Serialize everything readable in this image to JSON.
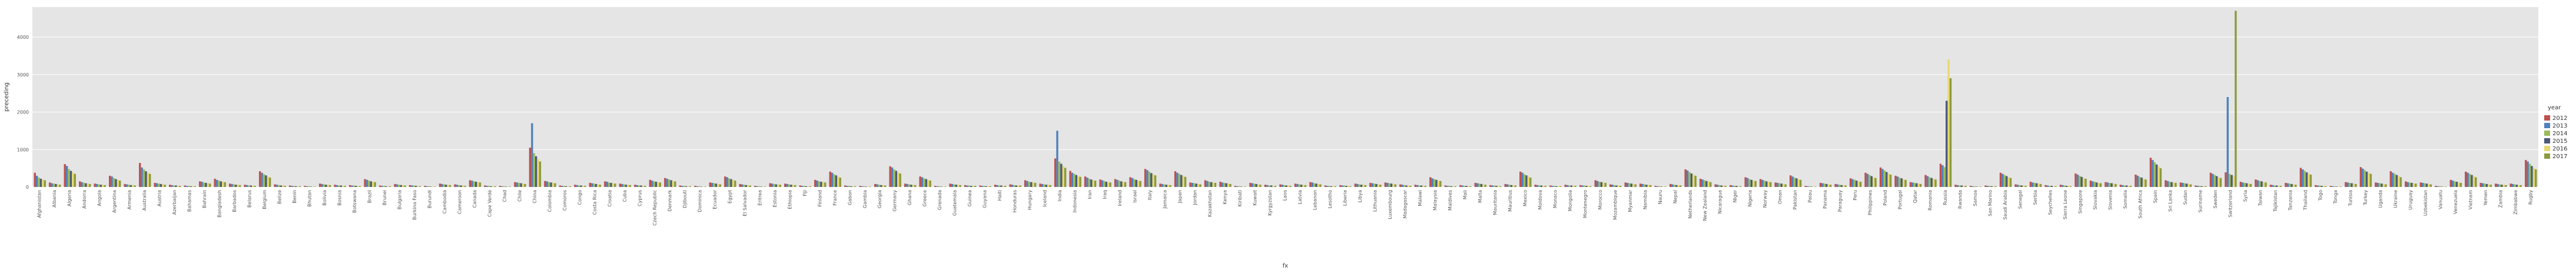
{
  "chart_data": {
    "type": "bar",
    "title": "",
    "xlabel": "fx",
    "ylabel": "preceding",
    "ylim": [
      0,
      4800
    ],
    "yticks": [
      0,
      1000,
      2000,
      3000,
      4000
    ],
    "grid": true,
    "legend_title": "year",
    "legend_position": "right",
    "categories": [
      "Afghanistan",
      "Albania",
      "Algeria",
      "Andorra",
      "Angola",
      "Argentina",
      "Armenia",
      "Australia",
      "Austria",
      "Azerbaijan",
      "Bahamas",
      "Bahrain",
      "Bangladesh",
      "Barbados",
      "Belarus",
      "Belgium",
      "Belize",
      "Benin",
      "Bhutan",
      "Bolivia",
      "Bosnia",
      "Botswana",
      "Brazil",
      "Brunei",
      "Bulgaria",
      "Burkina Faso",
      "Burundi",
      "Cambodia",
      "Cameroon",
      "Canada",
      "Cape Verde",
      "Chad",
      "Chile",
      "China",
      "Colombia",
      "Comoros",
      "Congo",
      "Costa Rica",
      "Croatia",
      "Cuba",
      "Cyprus",
      "Czech Republic",
      "Denmark",
      "Djibouti",
      "Dominica",
      "Ecuador",
      "Egypt",
      "El Salvador",
      "Eritrea",
      "Estonia",
      "Ethiopia",
      "Fiji",
      "Finland",
      "France",
      "Gabon",
      "Gambia",
      "Georgia",
      "Germany",
      "Ghana",
      "Greece",
      "Grenada",
      "Guatemala",
      "Guinea",
      "Guyana",
      "Haiti",
      "Honduras",
      "Hungary",
      "Iceland",
      "India",
      "Indonesia",
      "Iran",
      "Iraq",
      "Ireland",
      "Israel",
      "Italy",
      "Jamaica",
      "Japan",
      "Jordan",
      "Kazakhstan",
      "Kenya",
      "Kiribati",
      "Kuwait",
      "Kyrgyzstan",
      "Laos",
      "Latvia",
      "Lebanon",
      "Lesotho",
      "Liberia",
      "Libya",
      "Lithuania",
      "Luxembourg",
      "Madagascar",
      "Malawi",
      "Malaysia",
      "Maldives",
      "Mali",
      "Malta",
      "Mauritania",
      "Mauritius",
      "Mexico",
      "Moldova",
      "Monaco",
      "Mongolia",
      "Montenegro",
      "Morocco",
      "Mozambique",
      "Myanmar",
      "Namibia",
      "Nauru",
      "Nepal",
      "Netherlands",
      "New Zealand",
      "Nicaragua",
      "Niger",
      "Nigeria",
      "Norway",
      "Oman",
      "Pakistan",
      "Palau",
      "Panama",
      "Paraguay",
      "Peru",
      "Philippines",
      "Poland",
      "Portugal",
      "Qatar",
      "Romania",
      "Russia",
      "Rwanda",
      "Samoa",
      "San Marino",
      "Saudi Arabia",
      "Senegal",
      "Serbia",
      "Seychelles",
      "Sierra Leone",
      "Singapore",
      "Slovakia",
      "Slovenia",
      "Somalia",
      "South Africa",
      "Spain",
      "Sri Lanka",
      "Sudan",
      "Suriname",
      "Sweden",
      "Switzerland",
      "Syria",
      "Taiwan",
      "Tajikistan",
      "Tanzania",
      "Thailand",
      "Togo",
      "Tonga",
      "Tunisia",
      "Turkey",
      "Uganda",
      "Ukraine",
      "Uruguay",
      "Uzbekistan",
      "Vanuatu",
      "Venezuela",
      "Vietnam",
      "Yemen",
      "Zambia",
      "Zimbabwe",
      "Rugby"
    ],
    "series": [
      {
        "name": "2012",
        "color": "#c0504d",
        "values": [
          380,
          120,
          610,
          150,
          90,
          300,
          80,
          640,
          110,
          60,
          40,
          150,
          220,
          90,
          60,
          420,
          70,
          40,
          30,
          90,
          60,
          50,
          210,
          40,
          80,
          50,
          30,
          90,
          70,
          180,
          40,
          30,
          130,
          1050,
          160,
          40,
          60,
          110,
          150,
          90,
          60,
          190,
          240,
          40,
          30,
          120,
          280,
          80,
          30,
          100,
          90,
          40,
          190,
          410,
          40,
          30,
          80,
          550,
          90,
          280,
          30,
          90,
          50,
          40,
          60,
          70,
          180,
          90,
          760,
          430,
          280,
          200,
          210,
          260,
          480,
          90,
          420,
          120,
          180,
          140,
          30,
          110,
          60,
          70,
          90,
          130,
          40,
          50,
          90,
          110,
          120,
          70,
          60,
          260,
          40,
          50,
          110,
          50,
          80,
          410,
          60,
          40,
          60,
          50,
          180,
          70,
          120,
          90,
          30,
          80,
          470,
          220,
          70,
          50,
          260,
          210,
          120,
          310,
          30,
          110,
          80,
          230,
          380,
          520,
          300,
          130,
          320,
          620,
          60,
          30,
          40,
          380,
          70,
          140,
          50,
          60,
          360,
          170,
          130,
          60,
          330,
          780,
          180,
          120,
          40,
          380,
          390,
          140,
          200,
          60,
          110,
          510,
          50,
          30,
          130,
          530,
          120,
          420,
          150,
          120,
          30,
          190,
          410,
          110,
          90,
          90,
          720
        ]
      },
      {
        "name": "2013",
        "color": "#4f81bd",
        "values": [
          300,
          100,
          560,
          130,
          80,
          280,
          70,
          520,
          100,
          50,
          30,
          140,
          190,
          80,
          50,
          380,
          60,
          30,
          20,
          80,
          50,
          40,
          190,
          30,
          70,
          40,
          20,
          80,
          60,
          170,
          30,
          20,
          120,
          1700,
          150,
          30,
          50,
          100,
          140,
          80,
          50,
          170,
          220,
          30,
          20,
          110,
          260,
          70,
          20,
          90,
          80,
          30,
          170,
          380,
          30,
          20,
          70,
          520,
          80,
          260,
          20,
          80,
          40,
          30,
          50,
          60,
          160,
          80,
          1500,
          380,
          250,
          180,
          190,
          240,
          450,
          80,
          380,
          110,
          160,
          120,
          20,
          100,
          50,
          60,
          80,
          120,
          30,
          40,
          80,
          100,
          110,
          60,
          50,
          230,
          30,
          40,
          100,
          40,
          70,
          380,
          50,
          30,
          50,
          40,
          160,
          60,
          110,
          80,
          20,
          70,
          440,
          200,
          60,
          40,
          240,
          190,
          110,
          280,
          20,
          100,
          70,
          210,
          350,
          480,
          280,
          120,
          290,
          580,
          50,
          20,
          30,
          350,
          60,
          120,
          40,
          50,
          330,
          150,
          120,
          50,
          300,
          720,
          160,
          110,
          30,
          350,
          2400,
          120,
          180,
          50,
          100,
          470,
          40,
          20,
          120,
          490,
          110,
          380,
          130,
          110,
          20,
          170,
          380,
          100,
          80,
          80,
          680
        ]
      },
      {
        "name": "2014",
        "color": "#9bbb59",
        "values": [
          250,
          90,
          480,
          110,
          70,
          240,
          60,
          470,
          90,
          40,
          30,
          120,
          170,
          70,
          40,
          340,
          50,
          30,
          20,
          70,
          40,
          40,
          170,
          30,
          60,
          40,
          20,
          70,
          50,
          150,
          30,
          20,
          110,
          900,
          130,
          30,
          40,
          90,
          120,
          70,
          40,
          150,
          200,
          30,
          20,
          100,
          230,
          60,
          20,
          80,
          70,
          30,
          150,
          340,
          30,
          20,
          60,
          470,
          70,
          230,
          20,
          70,
          40,
          30,
          40,
          50,
          140,
          70,
          680,
          350,
          220,
          160,
          170,
          210,
          410,
          70,
          350,
          100,
          140,
          110,
          20,
          90,
          40,
          50,
          70,
          100,
          30,
          40,
          70,
          90,
          100,
          50,
          40,
          210,
          30,
          30,
          90,
          40,
          60,
          340,
          40,
          30,
          40,
          40,
          140,
          50,
          100,
          70,
          20,
          60,
          400,
          180,
          50,
          30,
          210,
          170,
          100,
          250,
          20,
          90,
          60,
          190,
          320,
          440,
          250,
          110,
          260,
          530,
          40,
          20,
          30,
          320,
          50,
          110,
          30,
          40,
          300,
          140,
          110,
          40,
          270,
          660,
          140,
          100,
          30,
          320,
          350,
          110,
          160,
          40,
          90,
          430,
          40,
          20,
          110,
          450,
          100,
          350,
          120,
          100,
          20,
          150,
          350,
          90,
          70,
          70,
          620
        ]
      },
      {
        "name": "2015",
        "color": "#4a5a7a",
        "values": [
          220,
          80,
          430,
          100,
          60,
          210,
          50,
          420,
          80,
          40,
          20,
          110,
          150,
          60,
          40,
          310,
          40,
          20,
          10,
          60,
          40,
          30,
          150,
          20,
          50,
          30,
          10,
          60,
          40,
          140,
          20,
          10,
          100,
          820,
          120,
          20,
          40,
          80,
          110,
          60,
          40,
          140,
          180,
          20,
          10,
          90,
          210,
          50,
          10,
          70,
          60,
          20,
          140,
          310,
          20,
          10,
          50,
          430,
          60,
          210,
          10,
          60,
          30,
          20,
          40,
          40,
          130,
          60,
          620,
          320,
          200,
          140,
          150,
          190,
          370,
          60,
          320,
          90,
          130,
          100,
          10,
          80,
          40,
          40,
          60,
          90,
          20,
          30,
          60,
          80,
          90,
          40,
          40,
          190,
          20,
          30,
          80,
          30,
          50,
          310,
          40,
          20,
          40,
          30,
          130,
          40,
          90,
          60,
          10,
          50,
          360,
          160,
          40,
          30,
          190,
          150,
          90,
          230,
          10,
          80,
          50,
          170,
          290,
          400,
          230,
          100,
          240,
          2300,
          40,
          10,
          20,
          290,
          40,
          100,
          30,
          30,
          270,
          120,
          100,
          40,
          250,
          600,
          130,
          90,
          20,
          290,
          320,
          100,
          150,
          40,
          80,
          390,
          30,
          10,
          100,
          410,
          90,
          320,
          110,
          90,
          10,
          140,
          320,
          80,
          60,
          60,
          560
        ]
      },
      {
        "name": "2016",
        "color": "#e8d870",
        "values": [
          200,
          70,
          390,
          90,
          60,
          190,
          50,
          380,
          70,
          30,
          20,
          100,
          140,
          60,
          30,
          280,
          40,
          20,
          10,
          60,
          30,
          30,
          140,
          20,
          50,
          30,
          10,
          60,
          40,
          130,
          20,
          10,
          90,
          740,
          110,
          20,
          30,
          70,
          100,
          60,
          30,
          130,
          160,
          20,
          10,
          80,
          190,
          50,
          10,
          70,
          60,
          20,
          130,
          280,
          20,
          10,
          50,
          390,
          60,
          190,
          10,
          60,
          30,
          20,
          30,
          40,
          120,
          60,
          560,
          290,
          180,
          130,
          140,
          170,
          340,
          60,
          290,
          80,
          120,
          90,
          10,
          70,
          30,
          40,
          60,
          80,
          20,
          30,
          60,
          70,
          80,
          40,
          30,
          170,
          20,
          20,
          70,
          30,
          50,
          280,
          30,
          20,
          30,
          30,
          120,
          40,
          80,
          60,
          10,
          50,
          330,
          150,
          40,
          20,
          170,
          140,
          80,
          210,
          10,
          70,
          50,
          150,
          260,
          360,
          210,
          90,
          220,
          3400,
          30,
          10,
          20,
          260,
          40,
          90,
          20,
          30,
          240,
          110,
          90,
          30,
          220,
          550,
          120,
          80,
          20,
          260,
          290,
          90,
          130,
          30,
          70,
          360,
          30,
          10,
          90,
          380,
          80,
          290,
          100,
          80,
          10,
          120,
          290,
          70,
          60,
          50,
          510
        ]
      },
      {
        "name": "2017",
        "color": "#8a9a40",
        "values": [
          180,
          60,
          350,
          80,
          50,
          170,
          40,
          350,
          60,
          30,
          20,
          90,
          130,
          50,
          30,
          250,
          30,
          20,
          10,
          50,
          30,
          20,
          130,
          20,
          40,
          20,
          10,
          50,
          30,
          120,
          20,
          10,
          80,
          680,
          100,
          20,
          30,
          60,
          90,
          50,
          30,
          120,
          150,
          20,
          10,
          70,
          170,
          40,
          10,
          60,
          50,
          20,
          120,
          250,
          20,
          10,
          40,
          360,
          50,
          170,
          10,
          50,
          30,
          20,
          30,
          40,
          110,
          50,
          510,
          270,
          170,
          120,
          130,
          160,
          310,
          50,
          270,
          70,
          110,
          80,
          10,
          60,
          30,
          30,
          50,
          70,
          20,
          20,
          50,
          60,
          70,
          30,
          30,
          160,
          20,
          20,
          60,
          20,
          40,
          250,
          30,
          20,
          30,
          20,
          110,
          30,
          70,
          50,
          10,
          40,
          300,
          130,
          30,
          20,
          160,
          130,
          70,
          190,
          10,
          60,
          40,
          140,
          240,
          330,
          190,
          80,
          200,
          2900,
          30,
          10,
          20,
          240,
          30,
          80,
          20,
          20,
          220,
          100,
          80,
          30,
          200,
          500,
          110,
          70,
          20,
          240,
          4700,
          80,
          120,
          30,
          60,
          330,
          20,
          10,
          80,
          350,
          70,
          260,
          90,
          70,
          10,
          110,
          260,
          60,
          50,
          50,
          470
        ]
      }
    ]
  }
}
